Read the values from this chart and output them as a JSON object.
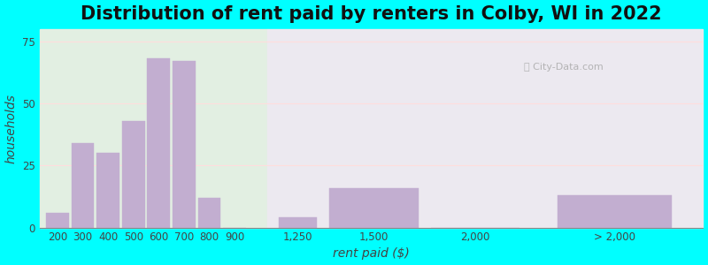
{
  "title": "Distribution of rent paid by renters in Colby, WI in 2022",
  "xlabel": "rent paid ($)",
  "ylabel": "households",
  "bar_color": "#c2aed0",
  "bar_edgecolor": "#c2aed0",
  "background_color": "#00ffff",
  "plot_bg_color_left": "#e2efe2",
  "plot_bg_color_right": "#ece9f0",
  "ylim": [
    0,
    80
  ],
  "yticks": [
    0,
    25,
    50,
    75
  ],
  "categories": [
    "200",
    "300",
    "400",
    "500",
    "600",
    "700",
    "800",
    "900",
    "1,250",
    "1,500",
    "2,000",
    "> 2,000"
  ],
  "values": [
    6,
    34,
    30,
    43,
    68,
    67,
    12,
    0,
    4,
    16,
    0,
    13
  ],
  "title_fontsize": 15,
  "axis_label_fontsize": 10,
  "tick_fontsize": 8.5,
  "positions": [
    0.5,
    1.5,
    2.5,
    3.5,
    4.5,
    5.5,
    6.5,
    7.5,
    10.0,
    13.0,
    17.0,
    22.5
  ],
  "bar_widths": [
    0.9,
    0.9,
    0.9,
    0.9,
    0.9,
    0.9,
    0.9,
    0.9,
    1.5,
    3.5,
    3.5,
    4.5
  ],
  "split_x": 8.8,
  "xlim_left": -0.2,
  "xlim_right": 26.0
}
